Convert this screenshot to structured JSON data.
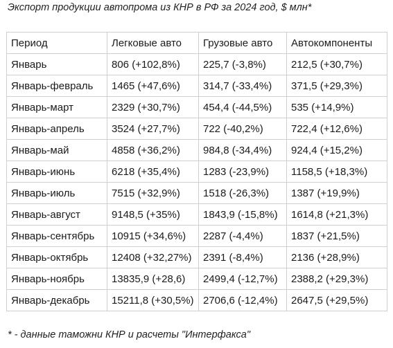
{
  "title": "Экспорт продукции автопрома из КНР в РФ за 2024 год, $ млн*",
  "table": {
    "headers": [
      "Период",
      "Легковые авто",
      "Грузовые авто",
      "Автокомпоненты"
    ],
    "rows": [
      [
        "Январь",
        "806 (+102,8%)",
        "225,7 (-3,8%)",
        "212,5 (+30,7%)"
      ],
      [
        "Январь-февраль",
        "1465 (+47,6%)",
        "314,7 (-33,4%)",
        "371,5 (+29,3%)"
      ],
      [
        "Январь-март",
        "2329 (+30,7%)",
        "454,4 (-44,5%)",
        "535 (+14,9%)"
      ],
      [
        "Январь-апрель",
        "3524 (+27,7%)",
        "722 (-40,2%)",
        "722,4 (+12,6%)"
      ],
      [
        "Январь-май",
        "4858 (+36,2%)",
        "984,8 (-34,4%)",
        "924,4 (+15,2%)"
      ],
      [
        "Январь-июнь",
        "6218 (+35,4%)",
        "1283 (-23,9%)",
        "1158,5 (+18,3%)"
      ],
      [
        "Январь-июль",
        "7515 (+32,9%)",
        "1518 (-26,3%)",
        "1387 (+19,9%)"
      ],
      [
        "Январь-август",
        "9148,5 (+35%)",
        "1843,9 (-15,8%)",
        "1614,8 (+21,3%)"
      ],
      [
        "Январь-сентябрь",
        "10915 (+34,6%)",
        "2287 (-4,4%)",
        "1837 (+21,5%)"
      ],
      [
        "Январь-октябрь",
        "12408 (+32,27%)",
        "2391 (-8,4%)",
        "2136 (+28,9%)"
      ],
      [
        "Январь-ноябрь",
        "13835,9 (+28,6)",
        "2499,4 (-12,7%)",
        "2388,2 (+29,3%)"
      ],
      [
        "Январь-декабрь",
        "15211,8 (+30,5%)",
        "2706,6 (-12,4%)",
        "2647,5 (+29,5%)"
      ]
    ]
  },
  "footnote": "* - данные таможни КНР и расчеты \"Интерфакса\""
}
